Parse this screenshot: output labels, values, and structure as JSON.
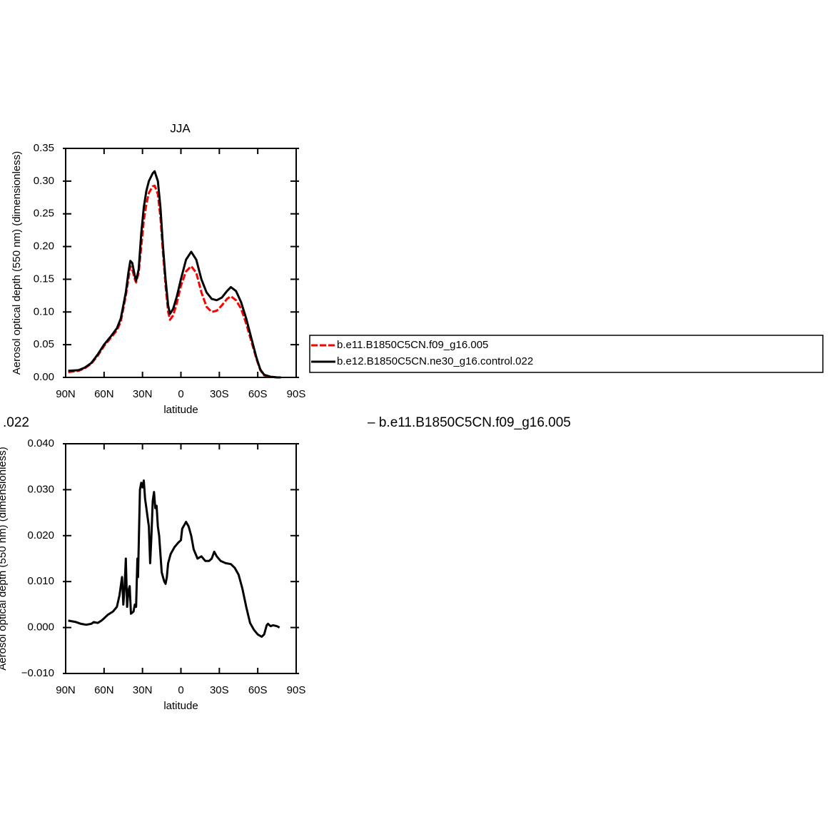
{
  "chart_data": [
    {
      "type": "line",
      "title": "JJA",
      "xlabel": "latitude",
      "ylabel": "Aerosol optical depth (550 nm) (dimensionless)",
      "xlim": [
        90,
        -90
      ],
      "ylim": [
        0,
        0.35
      ],
      "xticks": [
        {
          "value": 90,
          "label": "90N"
        },
        {
          "value": 60,
          "label": "60N"
        },
        {
          "value": 30,
          "label": "30N"
        },
        0,
        {
          "value": -30,
          "label": "30S"
        },
        {
          "value": -60,
          "label": "60S"
        },
        {
          "value": -90,
          "label": "90S"
        }
      ],
      "yticks": [
        {
          "value": 0,
          "label": "0.00"
        },
        0.05,
        {
          "value": 0.1,
          "label": "0.10"
        },
        0.15,
        {
          "value": 0.2,
          "label": "0.20"
        },
        0.25,
        {
          "value": 0.3,
          "label": "0.30"
        },
        0.35
      ],
      "legend": "right",
      "x": [
        88,
        80,
        75,
        70,
        65,
        60,
        55,
        50,
        47,
        45,
        43,
        41,
        39.5,
        38,
        36,
        35,
        33,
        31,
        29,
        27,
        25,
        22,
        20.5,
        18,
        16,
        14,
        12,
        10,
        8.5,
        6,
        3,
        0,
        -4,
        -8,
        -12,
        -16,
        -20,
        -24,
        -28,
        -32,
        -36,
        -39,
        -43,
        -47,
        -51,
        -55,
        -59,
        -62,
        -65,
        -70,
        -75,
        -78
      ],
      "series": [
        {
          "name": "b.e11.B1850C5CN.f09_g16.005",
          "color": "#ff0000",
          "dashed": true,
          "values": [
            0.008,
            0.01,
            0.014,
            0.021,
            0.033,
            0.048,
            0.06,
            0.072,
            0.085,
            0.105,
            0.125,
            0.15,
            0.17,
            0.165,
            0.15,
            0.145,
            0.16,
            0.2,
            0.24,
            0.265,
            0.282,
            0.292,
            0.293,
            0.28,
            0.245,
            0.19,
            0.14,
            0.1,
            0.088,
            0.095,
            0.115,
            0.14,
            0.162,
            0.17,
            0.16,
            0.13,
            0.108,
            0.1,
            0.102,
            0.11,
            0.12,
            0.124,
            0.118,
            0.105,
            0.082,
            0.055,
            0.028,
            0.011,
            0.003,
            0.001,
            0.0,
            0.0
          ]
        },
        {
          "name": "b.e12.B1850C5CN.ne30_g16.control.022",
          "color": "#000000",
          "dashed": false,
          "values": [
            0.01,
            0.011,
            0.015,
            0.022,
            0.035,
            0.05,
            0.062,
            0.075,
            0.09,
            0.11,
            0.13,
            0.16,
            0.178,
            0.175,
            0.155,
            0.148,
            0.165,
            0.22,
            0.26,
            0.285,
            0.3,
            0.312,
            0.315,
            0.3,
            0.26,
            0.2,
            0.15,
            0.11,
            0.097,
            0.105,
            0.125,
            0.15,
            0.18,
            0.192,
            0.18,
            0.15,
            0.13,
            0.12,
            0.118,
            0.122,
            0.132,
            0.138,
            0.132,
            0.115,
            0.09,
            0.06,
            0.03,
            0.012,
            0.004,
            0.001,
            0.0,
            0.0
          ]
        }
      ]
    },
    {
      "type": "line",
      "xlabel": "latitude",
      "ylabel": "Aerosol optical depth (550 nm) (dimensionless)",
      "annotations": [
        ".022",
        "– b.e11.B1850C5CN.f09_g16.005"
      ],
      "xlim": [
        90,
        -90
      ],
      "ylim": [
        -0.01,
        0.04
      ],
      "xticks": [
        {
          "value": 90,
          "label": "90N"
        },
        {
          "value": 60,
          "label": "60N"
        },
        {
          "value": 30,
          "label": "30N"
        },
        0,
        {
          "value": -30,
          "label": "30S"
        },
        {
          "value": -60,
          "label": "60S"
        },
        {
          "value": -90,
          "label": "90S"
        }
      ],
      "yticks": [
        {
          "value": -0.01,
          "label": "−0.010"
        },
        {
          "value": 0,
          "label": "0.000"
        },
        {
          "value": 0.01,
          "label": "0.010"
        },
        {
          "value": 0.02,
          "label": "0.020"
        },
        {
          "value": 0.03,
          "label": "0.030"
        },
        {
          "value": 0.04,
          "label": "0.040"
        }
      ],
      "x": [
        88,
        82,
        78,
        74,
        70,
        68,
        65,
        62,
        60,
        57,
        53,
        50,
        48,
        46,
        45,
        44,
        43,
        42,
        41,
        40,
        39,
        37,
        36,
        35,
        34,
        33.5,
        32,
        31,
        30,
        29,
        28,
        27,
        26,
        25,
        24,
        23,
        22,
        21,
        20,
        19,
        18,
        17,
        16,
        15,
        14,
        13,
        12,
        11,
        10,
        8,
        5,
        2,
        0,
        -1,
        -3,
        -4,
        -6,
        -8,
        -10,
        -13,
        -16,
        -19,
        -22,
        -24,
        -26,
        -28,
        -31,
        -35,
        -39,
        -42,
        -45,
        -48,
        -51,
        -54,
        -57,
        -60,
        -63,
        -65,
        -67,
        -68,
        -70,
        -72,
        -75,
        -77
      ],
      "series": [
        {
          "color": "#000000",
          "dashed": false,
          "values": [
            0.0015,
            0.0012,
            0.0008,
            0.0006,
            0.0008,
            0.0012,
            0.001,
            0.0015,
            0.002,
            0.0028,
            0.0035,
            0.0045,
            0.007,
            0.011,
            0.005,
            0.0085,
            0.015,
            0.0045,
            0.008,
            0.009,
            0.003,
            0.0035,
            0.005,
            0.0045,
            0.015,
            0.011,
            0.03,
            0.0315,
            0.0305,
            0.032,
            0.028,
            0.026,
            0.024,
            0.022,
            0.014,
            0.02,
            0.0275,
            0.0295,
            0.026,
            0.0265,
            0.022,
            0.02,
            0.016,
            0.012,
            0.011,
            0.01,
            0.0095,
            0.011,
            0.014,
            0.016,
            0.0175,
            0.0185,
            0.019,
            0.0215,
            0.0225,
            0.023,
            0.022,
            0.02,
            0.017,
            0.015,
            0.0155,
            0.0145,
            0.0145,
            0.015,
            0.0165,
            0.0155,
            0.0145,
            0.014,
            0.0138,
            0.013,
            0.0115,
            0.0085,
            0.0045,
            0.001,
            -0.0005,
            -0.0015,
            -0.002,
            -0.0015,
            0.0005,
            0.0008,
            0.0003,
            0.0005,
            0.0003,
            0.0
          ]
        }
      ]
    }
  ]
}
